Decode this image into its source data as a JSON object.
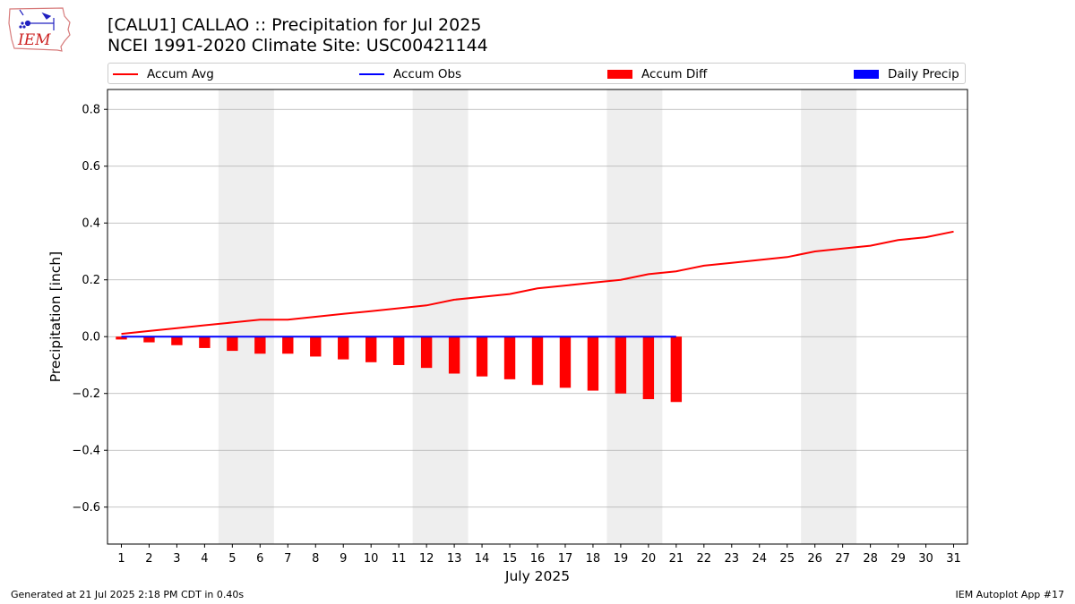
{
  "logo": {
    "text": "IEM"
  },
  "header": {
    "title_line1": "[CALU1] CALLAO :: Precipitation for Jul 2025",
    "title_line2": "NCEI 1991-2020 Climate Site: USC00421144"
  },
  "legend": {
    "items": [
      {
        "label": "Accum Avg",
        "kind": "line",
        "color": "#ff0000"
      },
      {
        "label": "Accum Obs",
        "kind": "line",
        "color": "#0000ff"
      },
      {
        "label": "Accum Diff",
        "kind": "patch",
        "color": "#ff0000"
      },
      {
        "label": "Daily Precip",
        "kind": "patch",
        "color": "#0000ff"
      }
    ]
  },
  "chart_data": {
    "type": "bar",
    "title": "[CALU1] CALLAO :: Precipitation for Jul 2025",
    "subtitle": "NCEI 1991-2020 Climate Site: USC00421144",
    "xlabel": "July 2025",
    "ylabel": "Precipitation [inch]",
    "ylim": [
      -0.73,
      0.87
    ],
    "xlim": [
      0.5,
      31.5
    ],
    "yticks": [
      -0.6,
      -0.4,
      -0.2,
      0.0,
      0.2,
      0.4,
      0.6,
      0.8
    ],
    "ytick_labels": [
      "−0.6",
      "−0.4",
      "−0.2",
      "0.0",
      "0.2",
      "0.4",
      "0.6",
      "0.8"
    ],
    "categories": [
      "1",
      "2",
      "3",
      "4",
      "5",
      "6",
      "7",
      "8",
      "9",
      "10",
      "11",
      "12",
      "13",
      "14",
      "15",
      "16",
      "17",
      "18",
      "19",
      "20",
      "21",
      "22",
      "23",
      "24",
      "25",
      "26",
      "27",
      "28",
      "29",
      "30",
      "31"
    ],
    "grid": "horizontal",
    "weekend_shading": [
      [
        4.5,
        6.5
      ],
      [
        11.5,
        13.5
      ],
      [
        18.5,
        20.5
      ],
      [
        25.5,
        27.5
      ]
    ],
    "weekend_color": "#eeeeee",
    "series": [
      {
        "name": "Accum Avg",
        "kind": "line",
        "color": "#ff0000",
        "x": [
          1,
          2,
          3,
          4,
          5,
          6,
          7,
          8,
          9,
          10,
          11,
          12,
          13,
          14,
          15,
          16,
          17,
          18,
          19,
          20,
          21,
          22,
          23,
          24,
          25,
          26,
          27,
          28,
          29,
          30,
          31
        ],
        "values": [
          0.01,
          0.02,
          0.03,
          0.04,
          0.05,
          0.06,
          0.06,
          0.07,
          0.08,
          0.09,
          0.1,
          0.11,
          0.13,
          0.14,
          0.15,
          0.17,
          0.18,
          0.19,
          0.2,
          0.22,
          0.23,
          0.25,
          0.26,
          0.27,
          0.28,
          0.3,
          0.31,
          0.32,
          0.34,
          0.35,
          0.37
        ]
      },
      {
        "name": "Accum Obs",
        "kind": "line",
        "color": "#0000ff",
        "x": [
          1,
          2,
          3,
          4,
          5,
          6,
          7,
          8,
          9,
          10,
          11,
          12,
          13,
          14,
          15,
          16,
          17,
          18,
          19,
          20,
          21
        ],
        "values": [
          0,
          0,
          0,
          0,
          0,
          0,
          0,
          0,
          0,
          0,
          0,
          0,
          0,
          0,
          0,
          0,
          0,
          0,
          0,
          0,
          0
        ]
      },
      {
        "name": "Accum Diff",
        "kind": "bar",
        "color": "#ff0000",
        "x": [
          1,
          2,
          3,
          4,
          5,
          6,
          7,
          8,
          9,
          10,
          11,
          12,
          13,
          14,
          15,
          16,
          17,
          18,
          19,
          20,
          21
        ],
        "values": [
          -0.01,
          -0.02,
          -0.03,
          -0.04,
          -0.05,
          -0.06,
          -0.06,
          -0.07,
          -0.08,
          -0.09,
          -0.1,
          -0.11,
          -0.13,
          -0.14,
          -0.15,
          -0.17,
          -0.18,
          -0.19,
          -0.2,
          -0.22,
          -0.23
        ]
      },
      {
        "name": "Daily Precip",
        "kind": "bar",
        "color": "#0000ff",
        "x": [
          1,
          2,
          3,
          4,
          5,
          6,
          7,
          8,
          9,
          10,
          11,
          12,
          13,
          14,
          15,
          16,
          17,
          18,
          19,
          20,
          21
        ],
        "values": [
          0,
          0,
          0,
          0,
          0,
          0,
          0,
          0,
          0,
          0,
          0,
          0,
          0,
          0,
          0,
          0,
          0,
          0,
          0,
          0,
          0
        ]
      }
    ]
  },
  "footer": {
    "generated": "Generated at 21 Jul 2025 2:18 PM CDT in 0.40s",
    "app": "IEM Autoplot App #17"
  }
}
